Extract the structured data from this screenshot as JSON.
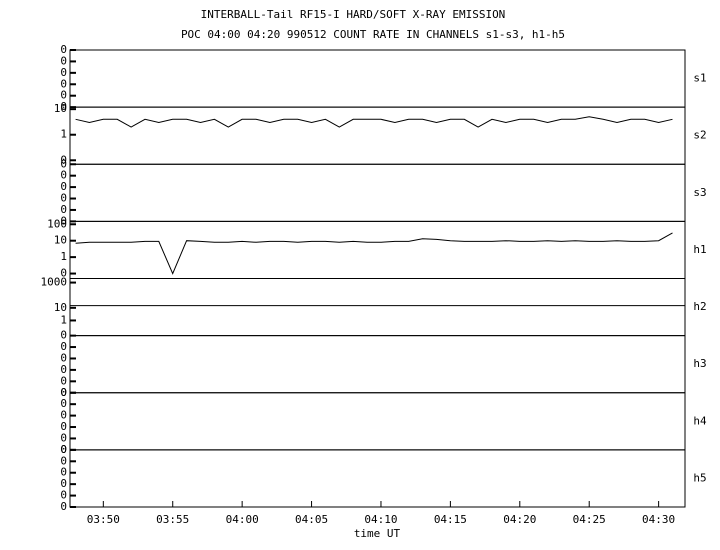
{
  "chart_data": {
    "type": "line",
    "title": "INTERBALL-Tail RF15-I HARD/SOFT X-RAY EMISSION",
    "subtitle": "POC 04:00 04:20 990512  COUNT RATE IN CHANNELS s1-s3, h1-h5",
    "xlabel": "time UT",
    "xlim": [
      227.6,
      271.9
    ],
    "xticks": [
      {
        "value": 230,
        "label": "03:50"
      },
      {
        "value": 235,
        "label": "03:55"
      },
      {
        "value": 240,
        "label": "04:00"
      },
      {
        "value": 245,
        "label": "04:05"
      },
      {
        "value": 250,
        "label": "04:10"
      },
      {
        "value": 255,
        "label": "04:15"
      },
      {
        "value": 260,
        "label": "04:20"
      },
      {
        "value": 265,
        "label": "04:25"
      },
      {
        "value": 270,
        "label": "04:30"
      }
    ],
    "color": "#000000",
    "panels": [
      {
        "name": "s1",
        "log": false,
        "ylim": [
          0,
          1
        ],
        "yticks": [
          {
            "value": 0,
            "label": "0"
          },
          {
            "value": 0.2,
            "label": "0"
          },
          {
            "value": 0.4,
            "label": "0"
          },
          {
            "value": 0.6,
            "label": "0"
          },
          {
            "value": 0.8,
            "label": "0"
          },
          {
            "value": 1,
            "label": "0"
          }
        ]
      },
      {
        "name": "s2",
        "log": true,
        "ylim": [
          0.07,
          12
        ],
        "yticks": [
          {
            "value": 0.1,
            "label": "0"
          },
          1,
          10
        ],
        "x": [
          228,
          229,
          230,
          231,
          232,
          233,
          234,
          235,
          236,
          237,
          238,
          239,
          240,
          241,
          242,
          243,
          244,
          245,
          246,
          247,
          248,
          249,
          250,
          251,
          252,
          253,
          254,
          255,
          256,
          257,
          258,
          259,
          260,
          261,
          262,
          263,
          264,
          265,
          266,
          267,
          268,
          269,
          270,
          271
        ],
        "values": [
          4,
          3,
          4,
          4,
          2,
          4,
          3,
          4,
          4,
          3,
          4,
          2,
          4,
          4,
          3,
          4,
          4,
          3,
          4,
          2,
          4,
          4,
          4,
          3,
          4,
          4,
          3,
          4,
          4,
          2,
          4,
          3,
          4,
          4,
          3,
          4,
          4,
          5,
          4,
          3,
          4,
          4,
          3,
          4
        ]
      },
      {
        "name": "s3",
        "log": false,
        "ylim": [
          0,
          1
        ],
        "yticks": [
          {
            "value": 0,
            "label": "0"
          },
          {
            "value": 0.2,
            "label": "0"
          },
          {
            "value": 0.4,
            "label": "0"
          },
          {
            "value": 0.6,
            "label": "0"
          },
          {
            "value": 0.8,
            "label": "0"
          },
          {
            "value": 1,
            "label": "0"
          }
        ]
      },
      {
        "name": "h1",
        "log": true,
        "ylim": [
          0.05,
          150
        ],
        "yticks": [
          {
            "value": 0.1,
            "label": "0"
          },
          1,
          10,
          100
        ],
        "x": [
          228,
          229,
          230,
          231,
          232,
          233,
          234,
          235,
          236,
          237,
          238,
          239,
          240,
          241,
          242,
          243,
          244,
          245,
          246,
          247,
          248,
          249,
          250,
          251,
          252,
          253,
          254,
          255,
          256,
          257,
          258,
          259,
          260,
          261,
          262,
          263,
          264,
          265,
          266,
          267,
          268,
          269,
          270,
          271
        ],
        "values": [
          7,
          8,
          8,
          8,
          8,
          9,
          9,
          0.1,
          10,
          9,
          8,
          8,
          9,
          8,
          9,
          9,
          8,
          9,
          9,
          8,
          9,
          8,
          8,
          9,
          9,
          13,
          12,
          10,
          9,
          9,
          9,
          10,
          9,
          9,
          10,
          9,
          10,
          9,
          9,
          10,
          9,
          9,
          10,
          30
        ]
      },
      {
        "name": "h2",
        "log": true,
        "ylim": [
          0.063,
          2100
        ],
        "yticks": [
          1,
          10,
          1000
        ],
        "x": [
          227.6,
          271.9
        ],
        "values": [
          15,
          15
        ]
      },
      {
        "name": "h3",
        "log": false,
        "ylim": [
          0,
          1
        ],
        "yticks": [
          {
            "value": 0,
            "label": "0"
          },
          {
            "value": 0.2,
            "label": "0"
          },
          {
            "value": 0.4,
            "label": "0"
          },
          {
            "value": 0.6,
            "label": "0"
          },
          {
            "value": 0.8,
            "label": "0"
          },
          {
            "value": 1,
            "label": "0"
          }
        ]
      },
      {
        "name": "h4",
        "log": false,
        "ylim": [
          0,
          1
        ],
        "yticks": [
          {
            "value": 0,
            "label": "0"
          },
          {
            "value": 0.2,
            "label": "0"
          },
          {
            "value": 0.4,
            "label": "0"
          },
          {
            "value": 0.6,
            "label": "0"
          },
          {
            "value": 0.8,
            "label": "0"
          },
          {
            "value": 1,
            "label": "0"
          }
        ]
      },
      {
        "name": "h5",
        "log": false,
        "ylim": [
          0,
          1
        ],
        "yticks": [
          {
            "value": 0,
            "label": "0"
          },
          {
            "value": 0.2,
            "label": "0"
          },
          {
            "value": 0.4,
            "label": "0"
          },
          {
            "value": 0.6,
            "label": "0"
          },
          {
            "value": 0.8,
            "label": "0"
          },
          {
            "value": 1,
            "label": "0"
          }
        ]
      }
    ]
  }
}
